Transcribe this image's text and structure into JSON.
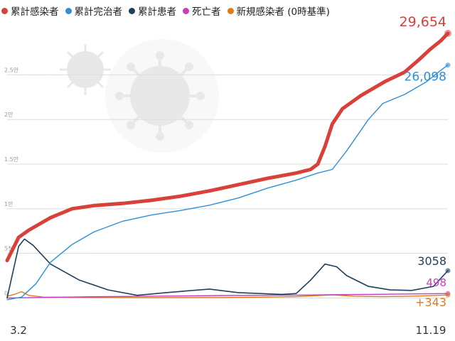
{
  "chart_data": {
    "type": "line",
    "x_start_label": "3.2",
    "x_end_label": "11.19",
    "y_ticks": [
      {
        "value": 0,
        "label": "0"
      },
      {
        "value": 5000,
        "label": "5천"
      },
      {
        "value": 10000,
        "label": "1만"
      },
      {
        "value": 15000,
        "label": "1.5만"
      },
      {
        "value": 20000,
        "label": "2만"
      },
      {
        "value": 25000,
        "label": "2.5만"
      }
    ],
    "ylim": [
      -1000,
      31000
    ],
    "grid": true,
    "legend_position": "top-left",
    "x_count": 263,
    "series": [
      {
        "name": "累計感染者",
        "color": "#d9403a",
        "end_label": "29,654",
        "points": [
          [
            0,
            4200
          ],
          [
            8,
            6800
          ],
          [
            15,
            7600
          ],
          [
            30,
            9000
          ],
          [
            45,
            10000
          ],
          [
            60,
            10350
          ],
          [
            80,
            10600
          ],
          [
            100,
            10950
          ],
          [
            120,
            11400
          ],
          [
            140,
            12000
          ],
          [
            160,
            12700
          ],
          [
            180,
            13400
          ],
          [
            200,
            14000
          ],
          [
            210,
            14400
          ],
          [
            215,
            15000
          ],
          [
            220,
            17000
          ],
          [
            225,
            19500
          ],
          [
            232,
            21200
          ],
          [
            245,
            22700
          ],
          [
            262,
            24300
          ],
          [
            275,
            25300
          ],
          [
            285,
            26700
          ],
          [
            293,
            27900
          ],
          [
            300,
            28800
          ],
          [
            305,
            29654
          ]
        ]
      },
      {
        "name": "累計完治者",
        "color": "#2e8fd8",
        "end_label": "26,098",
        "points": [
          [
            0,
            -200
          ],
          [
            10,
            100
          ],
          [
            20,
            1600
          ],
          [
            30,
            4000
          ],
          [
            45,
            6000
          ],
          [
            60,
            7400
          ],
          [
            80,
            8600
          ],
          [
            100,
            9300
          ],
          [
            120,
            9800
          ],
          [
            140,
            10400
          ],
          [
            160,
            11200
          ],
          [
            180,
            12300
          ],
          [
            200,
            13200
          ],
          [
            215,
            14000
          ],
          [
            225,
            14400
          ],
          [
            235,
            16500
          ],
          [
            250,
            20000
          ],
          [
            260,
            21800
          ],
          [
            275,
            22800
          ],
          [
            290,
            24200
          ],
          [
            300,
            25500
          ],
          [
            305,
            26098
          ]
        ]
      },
      {
        "name": "累計患者",
        "color": "#1f3f5b",
        "end_label": "3058",
        "points": [
          [
            0,
            0
          ],
          [
            8,
            5800
          ],
          [
            12,
            6600
          ],
          [
            18,
            5900
          ],
          [
            30,
            3800
          ],
          [
            50,
            2000
          ],
          [
            70,
            900
          ],
          [
            90,
            300
          ],
          [
            110,
            600
          ],
          [
            140,
            1000
          ],
          [
            160,
            600
          ],
          [
            190,
            400
          ],
          [
            200,
            500
          ],
          [
            210,
            2000
          ],
          [
            220,
            3800
          ],
          [
            228,
            3500
          ],
          [
            235,
            2500
          ],
          [
            250,
            1300
          ],
          [
            265,
            900
          ],
          [
            280,
            850
          ],
          [
            295,
            1300
          ],
          [
            305,
            3058
          ]
        ]
      },
      {
        "name": "死亡者",
        "color": "#c63fc0",
        "end_label": "498",
        "points": [
          [
            0,
            0
          ],
          [
            50,
            120
          ],
          [
            100,
            200
          ],
          [
            150,
            270
          ],
          [
            200,
            320
          ],
          [
            250,
            400
          ],
          [
            305,
            498
          ]
        ]
      },
      {
        "name": "新規感染者 (0時基準)",
        "color": "#e07a1f",
        "end_label": "+343",
        "points": [
          [
            0,
            200
          ],
          [
            5,
            400
          ],
          [
            10,
            700
          ],
          [
            15,
            300
          ],
          [
            25,
            100
          ],
          [
            60,
            50
          ],
          [
            100,
            40
          ],
          [
            150,
            50
          ],
          [
            200,
            150
          ],
          [
            225,
            350
          ],
          [
            240,
            200
          ],
          [
            260,
            150
          ],
          [
            280,
            200
          ],
          [
            300,
            300
          ],
          [
            305,
            343
          ]
        ]
      }
    ]
  }
}
